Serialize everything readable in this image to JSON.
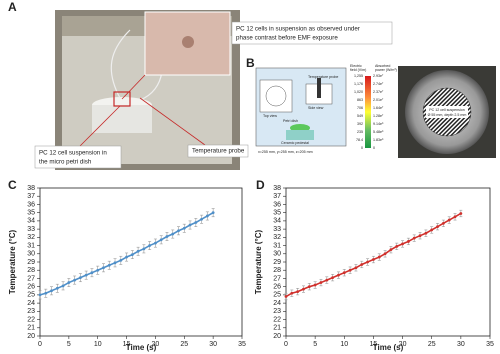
{
  "panel_a": {
    "label": "A",
    "inset_caption": [
      "PC 12 cells in suspension as observed under",
      "phase contrast before EMF exposure"
    ],
    "dish_caption": [
      "PC 12 cell suspension in",
      "the micro petri dish"
    ],
    "probe_caption": "Temperature probe"
  },
  "panel_b": {
    "label": "B",
    "temperature_probe": "Temperature probe",
    "top_view": "Top view",
    "side_view": "Side view",
    "petri_dish": "Petri dish",
    "pedestal": "Ceramic pedestal",
    "dimensions": "x=255 mm, y=255 mm, z=205 mm",
    "field_header": [
      "Electric",
      "field (V/m)"
    ],
    "power_header": [
      "Absorbed",
      "power (W/m³)"
    ],
    "field_values": [
      "1,255",
      "1,176",
      "1,020",
      "863",
      "706",
      "549",
      "392",
      "235",
      "78.4",
      "0"
    ],
    "power_values": [
      "2.93e⁷",
      "2.74e⁷",
      "2.37e⁷",
      "2.01e⁷",
      "1.64e⁷",
      "1.28e⁷",
      "9.14e⁶",
      "5.48e⁶",
      "1.83e⁶",
      "0"
    ],
    "photo_caption": [
      "PC 12 cell suspension",
      "Ø 55 mm, depth 2.5 mm"
    ]
  },
  "chart_data": [
    {
      "type": "line",
      "label": "C",
      "x_label": "Time (s)",
      "y_label": "Temperature (°C)",
      "color": "#4f8fc8",
      "x": [
        0,
        1,
        2,
        3,
        4,
        5,
        6,
        7,
        8,
        9,
        10,
        11,
        12,
        13,
        14,
        15,
        16,
        17,
        18,
        19,
        20,
        21,
        22,
        23,
        24,
        25,
        26,
        27,
        28,
        29,
        30
      ],
      "values": [
        25.0,
        25.2,
        25.5,
        25.8,
        26.1,
        26.5,
        26.8,
        27.1,
        27.4,
        27.7,
        28.0,
        28.3,
        28.6,
        28.9,
        29.2,
        29.6,
        29.9,
        30.3,
        30.6,
        31.0,
        31.3,
        31.7,
        32.1,
        32.4,
        32.8,
        33.1,
        33.5,
        33.8,
        34.2,
        34.6,
        35.0
      ],
      "errors": [
        0.5,
        0.5,
        0.5,
        0.5,
        0.5,
        0.5,
        0.5,
        0.5,
        0.5,
        0.5,
        0.5,
        0.5,
        0.5,
        0.5,
        0.5,
        0.5,
        0.5,
        0.5,
        0.5,
        0.5,
        0.5,
        0.5,
        0.5,
        0.5,
        0.5,
        0.5,
        0.5,
        0.5,
        0.5,
        0.5,
        0.5
      ],
      "xlim": [
        0,
        35
      ],
      "xticks": [
        0,
        5,
        10,
        15,
        20,
        25,
        30,
        35
      ],
      "ylim": [
        20,
        38
      ],
      "yticks": [
        20,
        21,
        22,
        23,
        24,
        25,
        26,
        27,
        28,
        29,
        30,
        31,
        32,
        33,
        34,
        35,
        36,
        37,
        38
      ]
    },
    {
      "type": "line",
      "label": "D",
      "x_label": "Time (s)",
      "y_label": "Temperature (°C)",
      "color": "#d0302c",
      "x": [
        0,
        1,
        2,
        3,
        4,
        5,
        6,
        7,
        8,
        9,
        10,
        11,
        12,
        13,
        14,
        15,
        16,
        17,
        18,
        19,
        20,
        21,
        22,
        23,
        24,
        25,
        26,
        27,
        28,
        29,
        30
      ],
      "values": [
        24.8,
        25.2,
        25.4,
        25.7,
        26.0,
        26.2,
        26.5,
        26.8,
        27.1,
        27.4,
        27.7,
        28.0,
        28.3,
        28.7,
        29.0,
        29.3,
        29.6,
        30.0,
        30.5,
        30.9,
        31.2,
        31.5,
        31.9,
        32.2,
        32.5,
        32.9,
        33.3,
        33.7,
        34.1,
        34.5,
        34.9
      ],
      "errors": [
        0.4,
        0.4,
        0.4,
        0.4,
        0.4,
        0.4,
        0.4,
        0.4,
        0.4,
        0.4,
        0.4,
        0.4,
        0.4,
        0.4,
        0.4,
        0.4,
        0.4,
        0.4,
        0.4,
        0.4,
        0.4,
        0.4,
        0.4,
        0.4,
        0.4,
        0.4,
        0.4,
        0.4,
        0.4,
        0.4,
        0.4
      ],
      "xlim": [
        0,
        35
      ],
      "xticks": [
        0,
        5,
        10,
        15,
        20,
        25,
        30,
        35
      ],
      "ylim": [
        20,
        38
      ],
      "yticks": [
        20,
        21,
        22,
        23,
        24,
        25,
        26,
        27,
        28,
        29,
        30,
        31,
        32,
        33,
        34,
        35,
        36,
        37,
        38
      ]
    }
  ]
}
